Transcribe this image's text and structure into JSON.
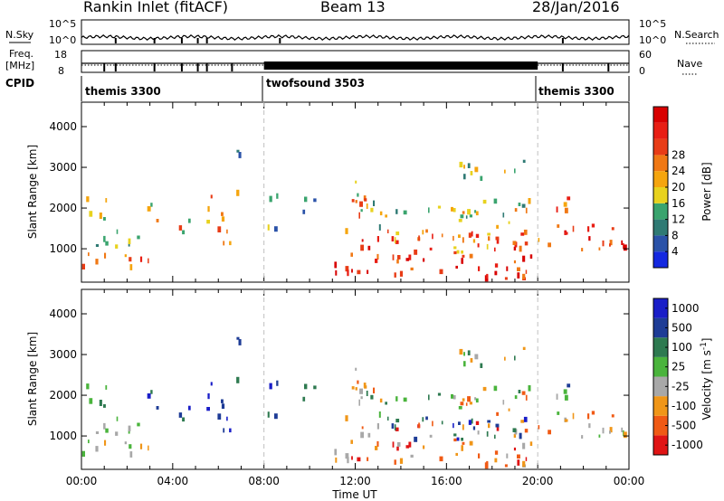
{
  "header": {
    "title": "Rankin Inlet (fitACF)",
    "beam": "Beam 13",
    "date": "28/Jan/2016"
  },
  "panels": {
    "noise": {
      "left_label": "N.Sky",
      "right_label": "N.Search",
      "ticks": [
        "10^5",
        "10^0"
      ]
    },
    "freq": {
      "left_label": "Freq.",
      "left_unit": "[MHz]",
      "right_label": "Nave",
      "ticks_left": [
        "18",
        "8"
      ],
      "ticks_right": [
        "60",
        "0"
      ]
    },
    "cpid": {
      "label": "CPID",
      "segments": [
        {
          "label": "themis 3300",
          "start_hour": 0,
          "end_hour": 8
        },
        {
          "label": "twofsound 3503",
          "start_hour": 8,
          "end_hour": 20
        },
        {
          "label": "themis 3300",
          "start_hour": 20,
          "end_hour": 24
        }
      ]
    }
  },
  "chart_data": [
    {
      "type": "heatmap",
      "ylabel": "Slant Range [km]",
      "ylim": [
        180,
        4600
      ],
      "yticks": [
        1000,
        2000,
        3000,
        4000
      ],
      "xlim": [
        0,
        24
      ],
      "xticks": [
        0,
        4,
        8,
        12,
        16,
        20,
        24
      ],
      "colorbar": {
        "label": "Power [dB]",
        "colors": [
          "#1428e0",
          "#2a52a8",
          "#2f7a74",
          "#3aa46e",
          "#e8d21e",
          "#f5a50e",
          "#f07814",
          "#e83c16",
          "#e81e14",
          "#d80000"
        ],
        "tick_labels": [
          "4",
          "8",
          "12",
          "16",
          "20",
          "24",
          "28"
        ]
      }
    },
    {
      "type": "heatmap",
      "ylabel": "Slant Range [km]",
      "ylim": [
        180,
        4600
      ],
      "yticks": [
        1000,
        2000,
        3000,
        4000
      ],
      "xlim": [
        0,
        24
      ],
      "xticks": [
        0,
        4,
        8,
        12,
        16,
        20,
        24
      ],
      "colorbar": {
        "label": "Velocity [m s",
        "label_sup": "-1",
        "label_end": "]",
        "colors": [
          "#e01414",
          "#f05a14",
          "#f09618",
          "#a8a8a8",
          "#4ab43c",
          "#2e7a50",
          "#1e3c96",
          "#1a1ec8"
        ],
        "tick_labels": [
          "-1000",
          "-500",
          "-100",
          "-25",
          "25",
          "100",
          "500",
          "1000"
        ]
      }
    }
  ],
  "x_axis": {
    "label": "Time UT",
    "tick_labels": [
      "00:00",
      "04:00",
      "08:00",
      "12:00",
      "16:00",
      "20:00",
      "00:00"
    ]
  },
  "colors": {
    "divider": "#c0c0c0"
  }
}
